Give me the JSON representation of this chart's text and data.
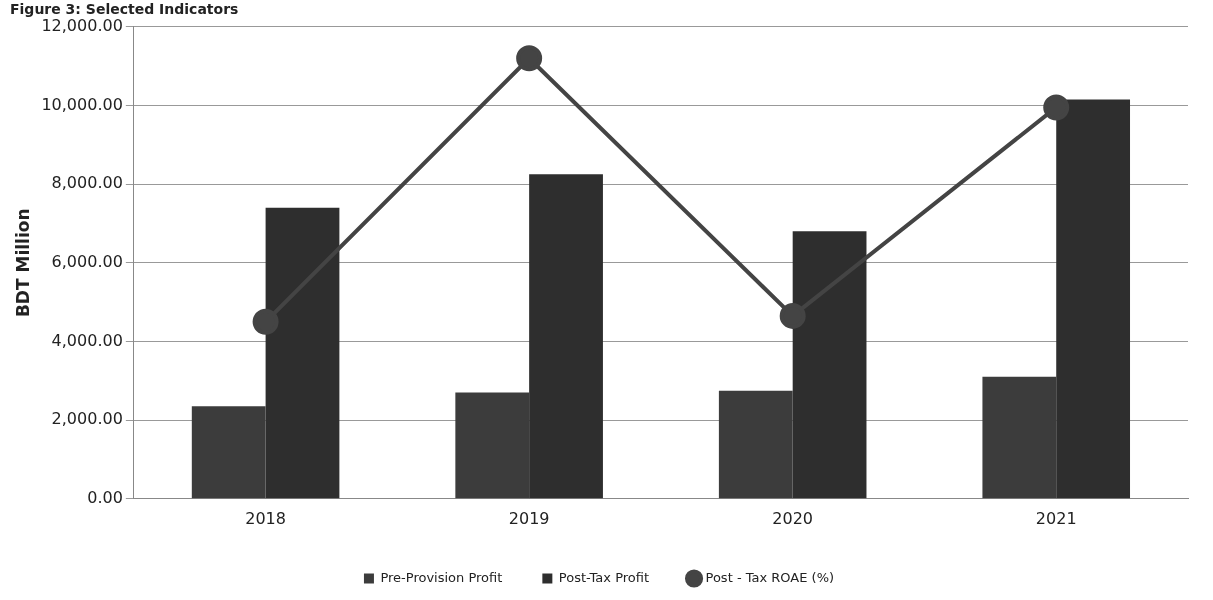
{
  "chart_data": {
    "type": "bar",
    "title": "Figure 3: Selected Indicators",
    "ylabel": "BDT Million",
    "categories": [
      "2018",
      "2019",
      "2020",
      "2021"
    ],
    "series": [
      {
        "name": "Pre-Provision Profit",
        "color": "#3c3c3c",
        "values": [
          2350,
          2700,
          2750,
          3100
        ]
      },
      {
        "name": "Post-Tax Profit",
        "color": "#2e2e2e",
        "values": [
          7400,
          8250,
          6800,
          10150
        ]
      },
      {
        "name": "Post - Tax ROAE (%)",
        "type": "line",
        "color": "#444444",
        "marker": "circle",
        "values": [
          4500,
          11200,
          4650,
          9950
        ]
      }
    ],
    "ylim": [
      0,
      12000
    ],
    "yticks": [
      {
        "value": 0,
        "label": "0.00"
      },
      {
        "value": 2000,
        "label": "2,000.00"
      },
      {
        "value": 4000,
        "label": "4,000.00"
      },
      {
        "value": 6000,
        "label": "6,000.00"
      },
      {
        "value": 8000,
        "label": "8,000.00"
      },
      {
        "value": 10000,
        "label": "10,000.00"
      },
      {
        "value": 12000,
        "label": "12,000.00"
      }
    ],
    "grid": "y",
    "legend": "bottom"
  }
}
